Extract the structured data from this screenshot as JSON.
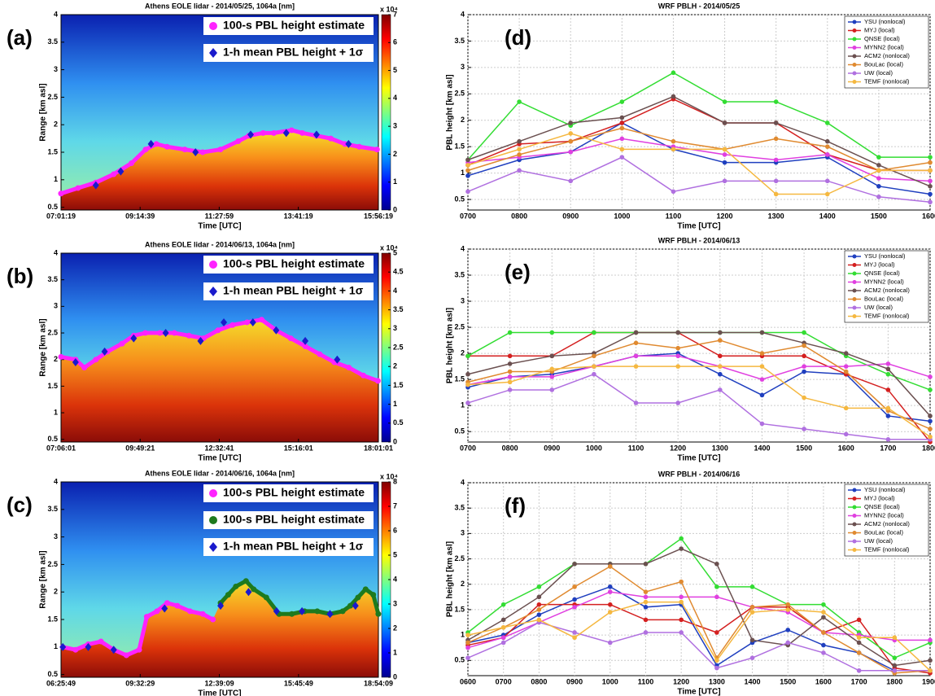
{
  "chart_data": [
    {
      "type": "scatter",
      "panel_label": "(a)",
      "title": "Athens EOLE lidar - 2014/05/25, 1064a [nm]",
      "x_label": "Time [UTC]",
      "y_label": "Range [km asl]",
      "xlim": [
        7.0219,
        15.9386
      ],
      "xticks": [
        {
          "value": 7.0219,
          "label": "07:01:19"
        },
        {
          "value": 9.2442,
          "label": "09:14:39"
        },
        {
          "value": 11.4664,
          "label": "11:27:59"
        },
        {
          "value": 13.6886,
          "label": "13:41:19"
        },
        {
          "value": 15.9386,
          "label": "15:56:19"
        }
      ],
      "ylim": [
        0.45,
        4
      ],
      "yticks": [
        0.5,
        1,
        1.5,
        2,
        2.5,
        3,
        3.5,
        4
      ],
      "colorbar": {
        "lim": [
          0,
          7
        ],
        "ticks": [
          0,
          1,
          2,
          3,
          4,
          5,
          6,
          7
        ],
        "label": "x 10⁴"
      },
      "series": [
        {
          "name": "100-s PBL height estimate",
          "color": "#ff22ff",
          "marker": "circle",
          "x": [
            7.02,
            7.5,
            8,
            8.5,
            9,
            9.4,
            9.7,
            10,
            10.5,
            11,
            11.5,
            12,
            12.3,
            12.7,
            13,
            13.5,
            13.8,
            14.2,
            14.6,
            15,
            15.4,
            15.9
          ],
          "values": [
            0.75,
            0.85,
            0.95,
            1.1,
            1.3,
            1.55,
            1.65,
            1.6,
            1.55,
            1.5,
            1.55,
            1.7,
            1.8,
            1.85,
            1.85,
            1.9,
            1.85,
            1.8,
            1.75,
            1.65,
            1.6,
            1.55
          ]
        },
        {
          "name": "1-h mean PBL height + 1σ",
          "color": "#1a1acc",
          "marker": "diamond",
          "x": [
            8.0,
            8.7,
            9.55,
            10.8,
            12.35,
            13.35,
            14.2,
            15.1
          ],
          "values": [
            0.9,
            1.15,
            1.65,
            1.5,
            1.82,
            1.85,
            1.82,
            1.65
          ]
        }
      ]
    },
    {
      "type": "scatter",
      "panel_label": "(b)",
      "title": "Athens EOLE lidar - 2014/06/13, 1064a [nm]",
      "x_label": "Time [UTC]",
      "y_label": "Range [km asl]",
      "xlim": [
        7.1003,
        18.0169
      ],
      "xticks": [
        {
          "value": 7.1003,
          "label": "07:06:01"
        },
        {
          "value": 9.8225,
          "label": "09:49:21"
        },
        {
          "value": 12.5447,
          "label": "12:32:41"
        },
        {
          "value": 15.2669,
          "label": "15:16:01"
        },
        {
          "value": 18.0169,
          "label": "18:01:01"
        }
      ],
      "ylim": [
        0.45,
        4
      ],
      "yticks": [
        0.5,
        1,
        1.5,
        2,
        2.5,
        3,
        3.5,
        4
      ],
      "colorbar": {
        "lim": [
          0,
          5
        ],
        "ticks": [
          0,
          0.5,
          1,
          1.5,
          2,
          2.5,
          3,
          3.5,
          4,
          4.5,
          5
        ],
        "label": "x 10⁴"
      },
      "series": [
        {
          "name": "100-s PBL height estimate",
          "color": "#ff22ff",
          "marker": "circle",
          "x": [
            7.1,
            7.6,
            7.9,
            8.3,
            8.7,
            9.2,
            9.6,
            10,
            10.5,
            11,
            11.5,
            12,
            12.5,
            13,
            13.5,
            14,
            14.5,
            15,
            15.5,
            16,
            16.5,
            17,
            17.5,
            18
          ],
          "values": [
            2.05,
            2.0,
            1.85,
            2.0,
            2.15,
            2.3,
            2.45,
            2.5,
            2.5,
            2.5,
            2.45,
            2.4,
            2.55,
            2.65,
            2.7,
            2.75,
            2.55,
            2.4,
            2.25,
            2.1,
            1.95,
            1.85,
            1.7,
            1.6
          ]
        },
        {
          "name": "1-h mean PBL height + 1σ",
          "color": "#1a1acc",
          "marker": "diamond",
          "x": [
            7.6,
            8.6,
            9.6,
            10.7,
            11.9,
            12.7,
            13.7,
            14.5,
            15.5,
            16.6
          ],
          "values": [
            1.95,
            2.15,
            2.4,
            2.5,
            2.35,
            2.7,
            2.7,
            2.55,
            2.35,
            2.0
          ]
        }
      ]
    },
    {
      "type": "scatter",
      "panel_label": "(c)",
      "title": "Athens EOLE lidar - 2014/06/16, 1064a [nm]",
      "x_label": "Time [UTC]",
      "y_label": "Range [km asl]",
      "xlim": [
        6.4303,
        18.9025
      ],
      "xticks": [
        {
          "value": 6.4303,
          "label": "06:25:49"
        },
        {
          "value": 9.5414,
          "label": "09:32:29"
        },
        {
          "value": 12.6525,
          "label": "12:39:09"
        },
        {
          "value": 15.7636,
          "label": "15:45:49"
        },
        {
          "value": 18.9025,
          "label": "18:54:09"
        }
      ],
      "ylim": [
        0.45,
        4
      ],
      "yticks": [
        0.5,
        1,
        1.5,
        2,
        2.5,
        3,
        3.5,
        4
      ],
      "colorbar": {
        "lim": [
          0,
          8
        ],
        "ticks": [
          0,
          1,
          2,
          3,
          4,
          5,
          6,
          7,
          8
        ],
        "label": "x 10⁴"
      },
      "series": [
        {
          "name": "100-s PBL height estimate",
          "color": "#ff22ff",
          "marker": "circle",
          "x": [
            6.5,
            7,
            7.5,
            8,
            8.5,
            9,
            9.5,
            9.8,
            10.2,
            10.6,
            11,
            11.5,
            12,
            12.4
          ],
          "values": [
            1.0,
            0.95,
            1.05,
            1.1,
            0.95,
            0.85,
            0.95,
            1.55,
            1.65,
            1.8,
            1.75,
            1.65,
            1.6,
            1.5
          ]
        },
        {
          "name": "100-s PBL height estimate",
          "color": "#1e7a1e",
          "marker": "circle",
          "x": [
            12.7,
            13,
            13.3,
            13.7,
            14,
            14.5,
            15,
            15.5,
            16,
            16.5,
            17,
            17.5,
            17.8,
            18.1,
            18.4,
            18.7,
            18.9
          ],
          "values": [
            1.8,
            1.95,
            2.1,
            2.2,
            2.05,
            1.9,
            1.6,
            1.6,
            1.65,
            1.65,
            1.6,
            1.65,
            1.75,
            1.9,
            2.05,
            1.95,
            1.6
          ]
        },
        {
          "name": "1-h mean PBL height + 1σ",
          "color": "#1a1acc",
          "marker": "diamond",
          "x": [
            6.5,
            7.5,
            8.5,
            10.5,
            12.7,
            13.8,
            14.9,
            15.9,
            17.0,
            18.0
          ],
          "values": [
            1.0,
            1.0,
            0.95,
            1.7,
            1.75,
            2.0,
            1.65,
            1.65,
            1.6,
            1.75
          ]
        }
      ]
    },
    {
      "type": "line",
      "panel_label": "(d)",
      "title": "WRF PBLH - 2014/05/25",
      "x_label": "Time [UTC]",
      "y_label": "PBL height [km asl]",
      "grid": true,
      "legend": "upper right",
      "categories": [
        "0700",
        "0800",
        "0900",
        "1000",
        "1100",
        "1200",
        "1300",
        "1400",
        "1500",
        "1600"
      ],
      "ylim": [
        0.3,
        4
      ],
      "yticks": [
        0.5,
        1,
        1.5,
        2,
        2.5,
        3,
        3.5,
        4
      ],
      "series": [
        {
          "name": "YSU (nonlocal)",
          "color": "#1f3fbf",
          "values": [
            0.95,
            1.25,
            1.4,
            1.95,
            1.45,
            1.2,
            1.2,
            1.3,
            0.75,
            0.6
          ]
        },
        {
          "name": "MYJ (local)",
          "color": "#d42020",
          "values": [
            1.15,
            1.55,
            1.6,
            1.95,
            2.4,
            1.95,
            1.95,
            1.35,
            1.05,
            1.05
          ]
        },
        {
          "name": "QNSE (local)",
          "color": "#33dd33",
          "values": [
            1.25,
            2.35,
            1.9,
            2.35,
            2.9,
            2.35,
            2.35,
            1.95,
            1.3,
            1.3
          ]
        },
        {
          "name": "MYNN2 (local)",
          "color": "#e040e0",
          "values": [
            1.2,
            1.3,
            1.4,
            1.65,
            1.5,
            1.35,
            1.25,
            1.35,
            0.9,
            0.85
          ]
        },
        {
          "name": "ACM2 (nonlocal)",
          "color": "#6b5050",
          "values": [
            1.25,
            1.6,
            1.95,
            2.05,
            2.45,
            1.95,
            1.95,
            1.6,
            1.15,
            0.75
          ]
        },
        {
          "name": "BouLac (local)",
          "color": "#e08a30",
          "values": [
            1.05,
            1.35,
            1.6,
            1.85,
            1.6,
            1.45,
            1.65,
            1.5,
            1.05,
            1.2
          ]
        },
        {
          "name": "UW (local)",
          "color": "#b070e0",
          "values": [
            0.65,
            1.05,
            0.85,
            1.3,
            0.65,
            0.85,
            0.85,
            0.85,
            0.55,
            0.45
          ]
        },
        {
          "name": "TEMF (nonlocal)",
          "color": "#f5b840",
          "values": [
            1.15,
            1.45,
            1.75,
            1.45,
            1.45,
            1.45,
            0.6,
            0.6,
            1.05,
            1.05
          ]
        }
      ]
    },
    {
      "type": "line",
      "panel_label": "(e)",
      "title": "WRF PBLH - 2014/06/13",
      "x_label": "Time [UTC]",
      "y_label": "PBL height [km asl]",
      "grid": true,
      "legend": "upper right",
      "categories": [
        "0700",
        "0800",
        "0900",
        "1000",
        "1100",
        "1200",
        "1300",
        "1400",
        "1500",
        "1600",
        "1700",
        "1800"
      ],
      "ylim": [
        0.3,
        4
      ],
      "yticks": [
        0.5,
        1,
        1.5,
        2,
        2.5,
        3,
        3.5,
        4
      ],
      "series": [
        {
          "name": "YSU (nonlocal)",
          "color": "#1f3fbf",
          "values": [
            1.35,
            1.55,
            1.6,
            1.75,
            1.95,
            2.0,
            1.6,
            1.2,
            1.65,
            1.6,
            0.8,
            0.7
          ]
        },
        {
          "name": "MYJ (local)",
          "color": "#d42020",
          "values": [
            1.95,
            1.95,
            1.95,
            2.4,
            2.4,
            2.4,
            1.95,
            1.95,
            1.95,
            1.6,
            1.3,
            0.3
          ]
        },
        {
          "name": "QNSE (local)",
          "color": "#33dd33",
          "values": [
            1.95,
            2.4,
            2.4,
            2.4,
            2.4,
            2.4,
            2.4,
            2.4,
            2.4,
            1.95,
            1.6,
            1.3
          ]
        },
        {
          "name": "MYNN2 (local)",
          "color": "#e040e0",
          "values": [
            1.4,
            1.55,
            1.55,
            1.75,
            1.95,
            1.95,
            1.75,
            1.5,
            1.75,
            1.75,
            1.8,
            1.55
          ]
        },
        {
          "name": "ACM2 (nonlocal)",
          "color": "#6b5050",
          "values": [
            1.6,
            1.8,
            1.95,
            2.0,
            2.4,
            2.4,
            2.4,
            2.4,
            2.2,
            2.0,
            1.7,
            0.8
          ]
        },
        {
          "name": "BouLac (local)",
          "color": "#e08a30",
          "values": [
            1.45,
            1.65,
            1.65,
            1.95,
            2.2,
            2.1,
            2.25,
            2.0,
            2.15,
            1.65,
            0.9,
            0.55
          ]
        },
        {
          "name": "UW (local)",
          "color": "#b070e0",
          "values": [
            1.05,
            1.3,
            1.3,
            1.6,
            1.05,
            1.05,
            1.3,
            0.65,
            0.55,
            0.45,
            0.35,
            0.35
          ]
        },
        {
          "name": "TEMF (nonlocal)",
          "color": "#f5b840",
          "values": [
            1.4,
            1.45,
            1.7,
            1.75,
            1.75,
            1.75,
            1.75,
            1.75,
            1.15,
            0.95,
            0.95,
            0.4
          ]
        }
      ]
    },
    {
      "type": "line",
      "panel_label": "(f)",
      "title": "WRF PBLH - 2014/06/16",
      "x_label": "Time [UTC]",
      "y_label": "PBL height [km asl]",
      "grid": true,
      "legend": "upper right",
      "categories": [
        "0600",
        "0700",
        "0800",
        "0900",
        "1000",
        "1100",
        "1200",
        "1300",
        "1400",
        "1500",
        "1600",
        "1700",
        "1800",
        "1900"
      ],
      "ylim": [
        0.2,
        4
      ],
      "yticks": [
        0.5,
        1,
        1.5,
        2,
        2.5,
        3,
        3.5,
        4
      ],
      "series": [
        {
          "name": "YSU (nonlocal)",
          "color": "#1f3fbf",
          "values": [
            0.85,
            1.0,
            1.4,
            1.7,
            1.95,
            1.55,
            1.6,
            0.4,
            0.85,
            1.1,
            0.8,
            0.65,
            0.3,
            0.3
          ]
        },
        {
          "name": "MYJ (local)",
          "color": "#d42020",
          "values": [
            0.8,
            0.95,
            1.6,
            1.6,
            1.6,
            1.3,
            1.3,
            1.05,
            1.55,
            1.55,
            1.05,
            1.3,
            0.35,
            0.25
          ]
        },
        {
          "name": "QNSE (local)",
          "color": "#33dd33",
          "values": [
            1.05,
            1.6,
            1.95,
            2.4,
            2.4,
            2.4,
            2.9,
            1.95,
            1.95,
            1.6,
            1.6,
            1.05,
            0.55,
            0.85
          ]
        },
        {
          "name": "MYNN2 (local)",
          "color": "#e040e0",
          "values": [
            0.75,
            0.95,
            1.25,
            1.55,
            1.85,
            1.75,
            1.75,
            1.75,
            1.55,
            1.45,
            1.05,
            1.0,
            0.9,
            0.9
          ]
        },
        {
          "name": "ACM2 (nonlocal)",
          "color": "#6b5050",
          "values": [
            0.9,
            1.3,
            1.75,
            2.4,
            2.4,
            2.4,
            2.7,
            2.4,
            0.9,
            0.8,
            1.35,
            0.85,
            0.4,
            0.5
          ]
        },
        {
          "name": "BouLac (local)",
          "color": "#e08a30",
          "values": [
            0.85,
            1.15,
            1.5,
            1.95,
            2.35,
            1.85,
            2.05,
            0.55,
            1.55,
            1.6,
            1.05,
            0.65,
            0.25,
            0.3
          ]
        },
        {
          "name": "UW (local)",
          "color": "#b070e0",
          "values": [
            0.55,
            0.85,
            1.25,
            1.05,
            0.85,
            1.05,
            1.05,
            0.35,
            0.55,
            0.85,
            0.65,
            0.3,
            0.3,
            0.3
          ]
        },
        {
          "name": "TEMF (nonlocal)",
          "color": "#f5b840",
          "values": [
            1.0,
            1.15,
            1.3,
            0.95,
            1.45,
            1.65,
            1.65,
            0.5,
            1.45,
            1.5,
            1.45,
            0.95,
            0.95,
            0.3
          ]
        }
      ]
    }
  ]
}
